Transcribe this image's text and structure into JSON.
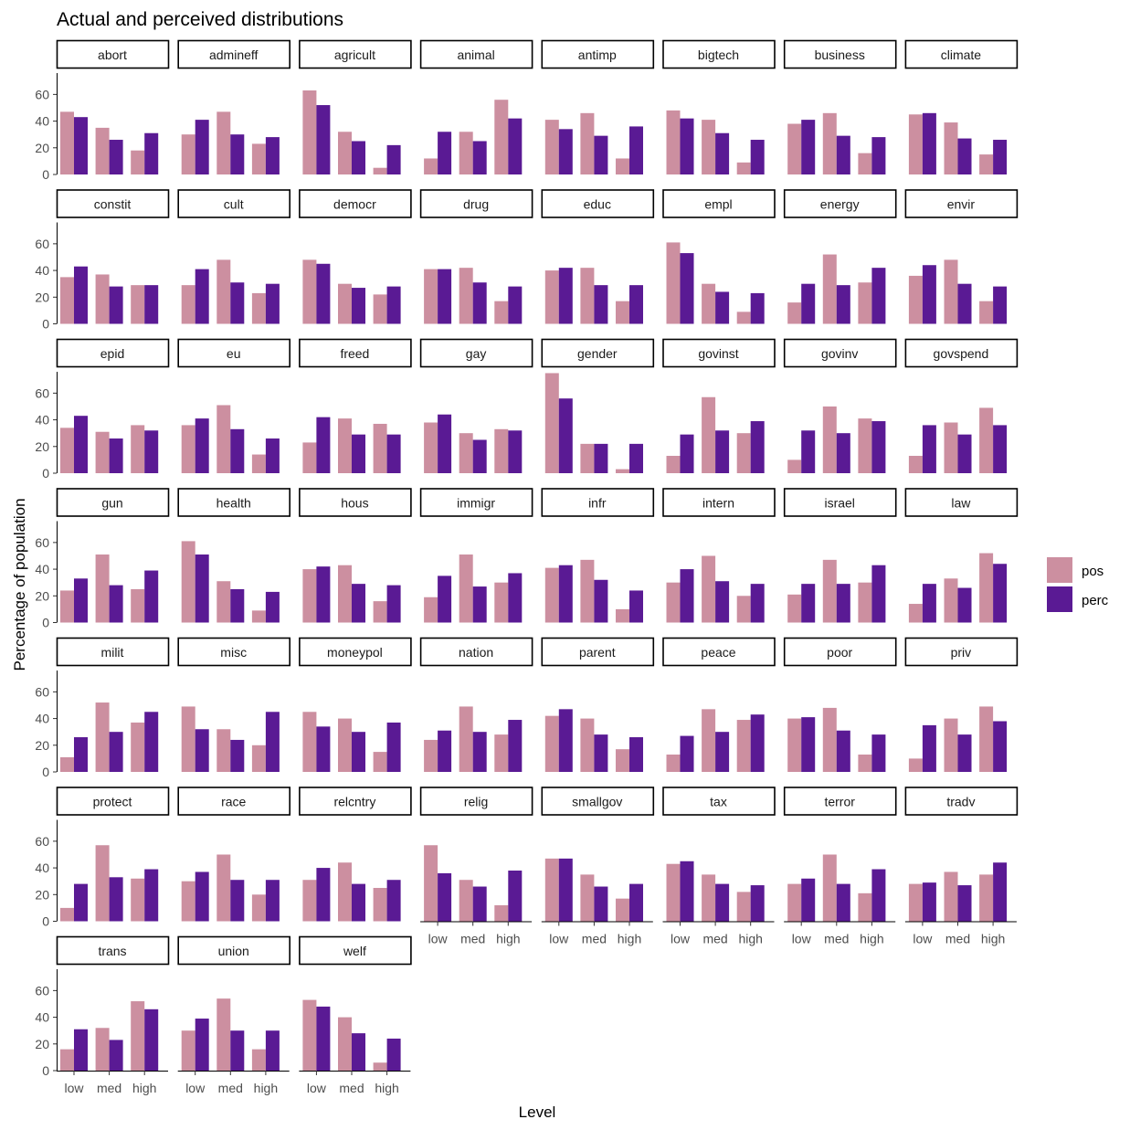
{
  "chart_data": {
    "type": "bar",
    "title": "Actual and perceived distributions",
    "xlabel": "Level",
    "ylabel": "Percentage of population",
    "categories": [
      "low",
      "med",
      "high"
    ],
    "yticks": [
      0,
      20,
      40,
      60
    ],
    "ylim": [
      0,
      76
    ],
    "grid": false,
    "legend_position": "right",
    "series": [
      {
        "name": "pos",
        "color": "#cc8fa0"
      },
      {
        "name": "perc",
        "color": "#5a1a94"
      }
    ],
    "panels": [
      {
        "name": "abort",
        "pos": [
          47,
          35,
          18
        ],
        "perc": [
          43,
          26,
          31
        ]
      },
      {
        "name": "admineff",
        "pos": [
          30,
          47,
          23
        ],
        "perc": [
          41,
          30,
          28
        ]
      },
      {
        "name": "agricult",
        "pos": [
          63,
          32,
          5
        ],
        "perc": [
          52,
          25,
          22
        ]
      },
      {
        "name": "animal",
        "pos": [
          12,
          32,
          56
        ],
        "perc": [
          32,
          25,
          42
        ]
      },
      {
        "name": "antimp",
        "pos": [
          41,
          46,
          12
        ],
        "perc": [
          34,
          29,
          36
        ]
      },
      {
        "name": "bigtech",
        "pos": [
          48,
          41,
          9
        ],
        "perc": [
          42,
          31,
          26
        ]
      },
      {
        "name": "business",
        "pos": [
          38,
          46,
          16
        ],
        "perc": [
          41,
          29,
          28
        ]
      },
      {
        "name": "climate",
        "pos": [
          45,
          39,
          15
        ],
        "perc": [
          46,
          27,
          26
        ]
      },
      {
        "name": "constit",
        "pos": [
          35,
          37,
          29
        ],
        "perc": [
          43,
          28,
          29
        ]
      },
      {
        "name": "cult",
        "pos": [
          29,
          48,
          23
        ],
        "perc": [
          41,
          31,
          30
        ]
      },
      {
        "name": "democr",
        "pos": [
          48,
          30,
          22
        ],
        "perc": [
          45,
          27,
          28
        ]
      },
      {
        "name": "drug",
        "pos": [
          41,
          42,
          17
        ],
        "perc": [
          41,
          31,
          28
        ]
      },
      {
        "name": "educ",
        "pos": [
          40,
          42,
          17
        ],
        "perc": [
          42,
          29,
          29
        ]
      },
      {
        "name": "empl",
        "pos": [
          61,
          30,
          9
        ],
        "perc": [
          53,
          24,
          23
        ]
      },
      {
        "name": "energy",
        "pos": [
          16,
          52,
          31
        ],
        "perc": [
          30,
          29,
          42
        ]
      },
      {
        "name": "envir",
        "pos": [
          36,
          48,
          17
        ],
        "perc": [
          44,
          30,
          28
        ]
      },
      {
        "name": "epid",
        "pos": [
          34,
          31,
          36
        ],
        "perc": [
          43,
          26,
          32
        ]
      },
      {
        "name": "eu",
        "pos": [
          36,
          51,
          14
        ],
        "perc": [
          41,
          33,
          26
        ]
      },
      {
        "name": "freed",
        "pos": [
          23,
          41,
          37
        ],
        "perc": [
          42,
          29,
          29
        ]
      },
      {
        "name": "gay",
        "pos": [
          38,
          30,
          33
        ],
        "perc": [
          44,
          25,
          32
        ]
      },
      {
        "name": "gender",
        "pos": [
          75,
          22,
          3
        ],
        "perc": [
          56,
          22,
          22
        ]
      },
      {
        "name": "govinst",
        "pos": [
          13,
          57,
          30
        ],
        "perc": [
          29,
          32,
          39
        ]
      },
      {
        "name": "govinv",
        "pos": [
          10,
          50,
          41
        ],
        "perc": [
          32,
          30,
          39
        ]
      },
      {
        "name": "govspend",
        "pos": [
          13,
          38,
          49
        ],
        "perc": [
          36,
          29,
          36
        ]
      },
      {
        "name": "gun",
        "pos": [
          24,
          51,
          25
        ],
        "perc": [
          33,
          28,
          39
        ]
      },
      {
        "name": "health",
        "pos": [
          61,
          31,
          9
        ],
        "perc": [
          51,
          25,
          23
        ]
      },
      {
        "name": "hous",
        "pos": [
          40,
          43,
          16
        ],
        "perc": [
          42,
          29,
          28
        ]
      },
      {
        "name": "immigr",
        "pos": [
          19,
          51,
          30
        ],
        "perc": [
          35,
          27,
          37
        ]
      },
      {
        "name": "infr",
        "pos": [
          41,
          47,
          10
        ],
        "perc": [
          43,
          32,
          24
        ]
      },
      {
        "name": "intern",
        "pos": [
          30,
          50,
          20
        ],
        "perc": [
          40,
          31,
          29
        ]
      },
      {
        "name": "israel",
        "pos": [
          21,
          47,
          30
        ],
        "perc": [
          29,
          29,
          43
        ]
      },
      {
        "name": "law",
        "pos": [
          14,
          33,
          52
        ],
        "perc": [
          29,
          26,
          44
        ]
      },
      {
        "name": "milit",
        "pos": [
          11,
          52,
          37
        ],
        "perc": [
          26,
          30,
          45
        ]
      },
      {
        "name": "misc",
        "pos": [
          49,
          32,
          20
        ],
        "perc": [
          32,
          24,
          45
        ]
      },
      {
        "name": "moneypol",
        "pos": [
          45,
          40,
          15
        ],
        "perc": [
          34,
          30,
          37
        ]
      },
      {
        "name": "nation",
        "pos": [
          24,
          49,
          28
        ],
        "perc": [
          31,
          30,
          39
        ]
      },
      {
        "name": "parent",
        "pos": [
          42,
          40,
          17
        ],
        "perc": [
          47,
          28,
          26
        ]
      },
      {
        "name": "peace",
        "pos": [
          13,
          47,
          39
        ],
        "perc": [
          27,
          30,
          43
        ]
      },
      {
        "name": "poor",
        "pos": [
          40,
          48,
          13
        ],
        "perc": [
          41,
          31,
          28
        ]
      },
      {
        "name": "priv",
        "pos": [
          10,
          40,
          49
        ],
        "perc": [
          35,
          28,
          38
        ]
      },
      {
        "name": "protect",
        "pos": [
          10,
          57,
          32
        ],
        "perc": [
          28,
          33,
          39
        ]
      },
      {
        "name": "race",
        "pos": [
          30,
          50,
          20
        ],
        "perc": [
          37,
          31,
          31
        ]
      },
      {
        "name": "relcntry",
        "pos": [
          31,
          44,
          25
        ],
        "perc": [
          40,
          28,
          31
        ]
      },
      {
        "name": "relig",
        "pos": [
          57,
          31,
          12
        ],
        "perc": [
          36,
          26,
          38
        ]
      },
      {
        "name": "smallgov",
        "pos": [
          47,
          35,
          17
        ],
        "perc": [
          47,
          26,
          28
        ]
      },
      {
        "name": "tax",
        "pos": [
          43,
          35,
          22
        ],
        "perc": [
          45,
          28,
          27
        ]
      },
      {
        "name": "terror",
        "pos": [
          28,
          50,
          21
        ],
        "perc": [
          32,
          28,
          39
        ]
      },
      {
        "name": "tradv",
        "pos": [
          28,
          37,
          35
        ],
        "perc": [
          29,
          27,
          44
        ]
      },
      {
        "name": "trans",
        "pos": [
          16,
          32,
          52
        ],
        "perc": [
          31,
          23,
          46
        ]
      },
      {
        "name": "union",
        "pos": [
          30,
          54,
          16
        ],
        "perc": [
          39,
          30,
          30
        ]
      },
      {
        "name": "welf",
        "pos": [
          53,
          40,
          6
        ],
        "perc": [
          48,
          28,
          24
        ]
      }
    ]
  }
}
